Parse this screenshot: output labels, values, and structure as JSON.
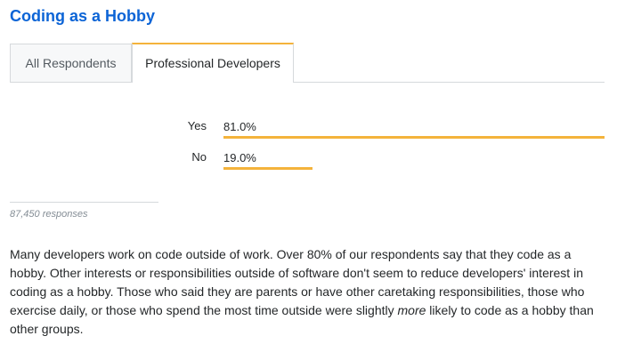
{
  "title": "Coding as a Hobby",
  "tabs": [
    {
      "label": "All Respondents",
      "active": false
    },
    {
      "label": "Professional Developers",
      "active": true
    }
  ],
  "chart_data": {
    "type": "bar",
    "orientation": "horizontal",
    "categories": [
      "Yes",
      "No"
    ],
    "values": [
      81.0,
      19.0
    ],
    "value_labels": [
      "81.0%",
      "19.0%"
    ],
    "unit": "%",
    "xlim": [
      0,
      81.0
    ],
    "bar_color": "#f4b33b"
  },
  "responses": "87,450 responses",
  "body": {
    "text_before_em": "Many developers work on code outside of work. Over 80% of our respondents say that they code as a hobby. Other interests or responsibilities outside of software don't seem to reduce developers' interest in coding as a hobby. Those who said they are parents or have other caretaking responsibilities, those who exercise daily, or those who spend the most time outside were slightly ",
    "em": "more",
    "text_after_em": " likely to code as a hobby than other groups."
  },
  "colors": {
    "title": "#0c64d6",
    "accent": "#f4b33b"
  }
}
